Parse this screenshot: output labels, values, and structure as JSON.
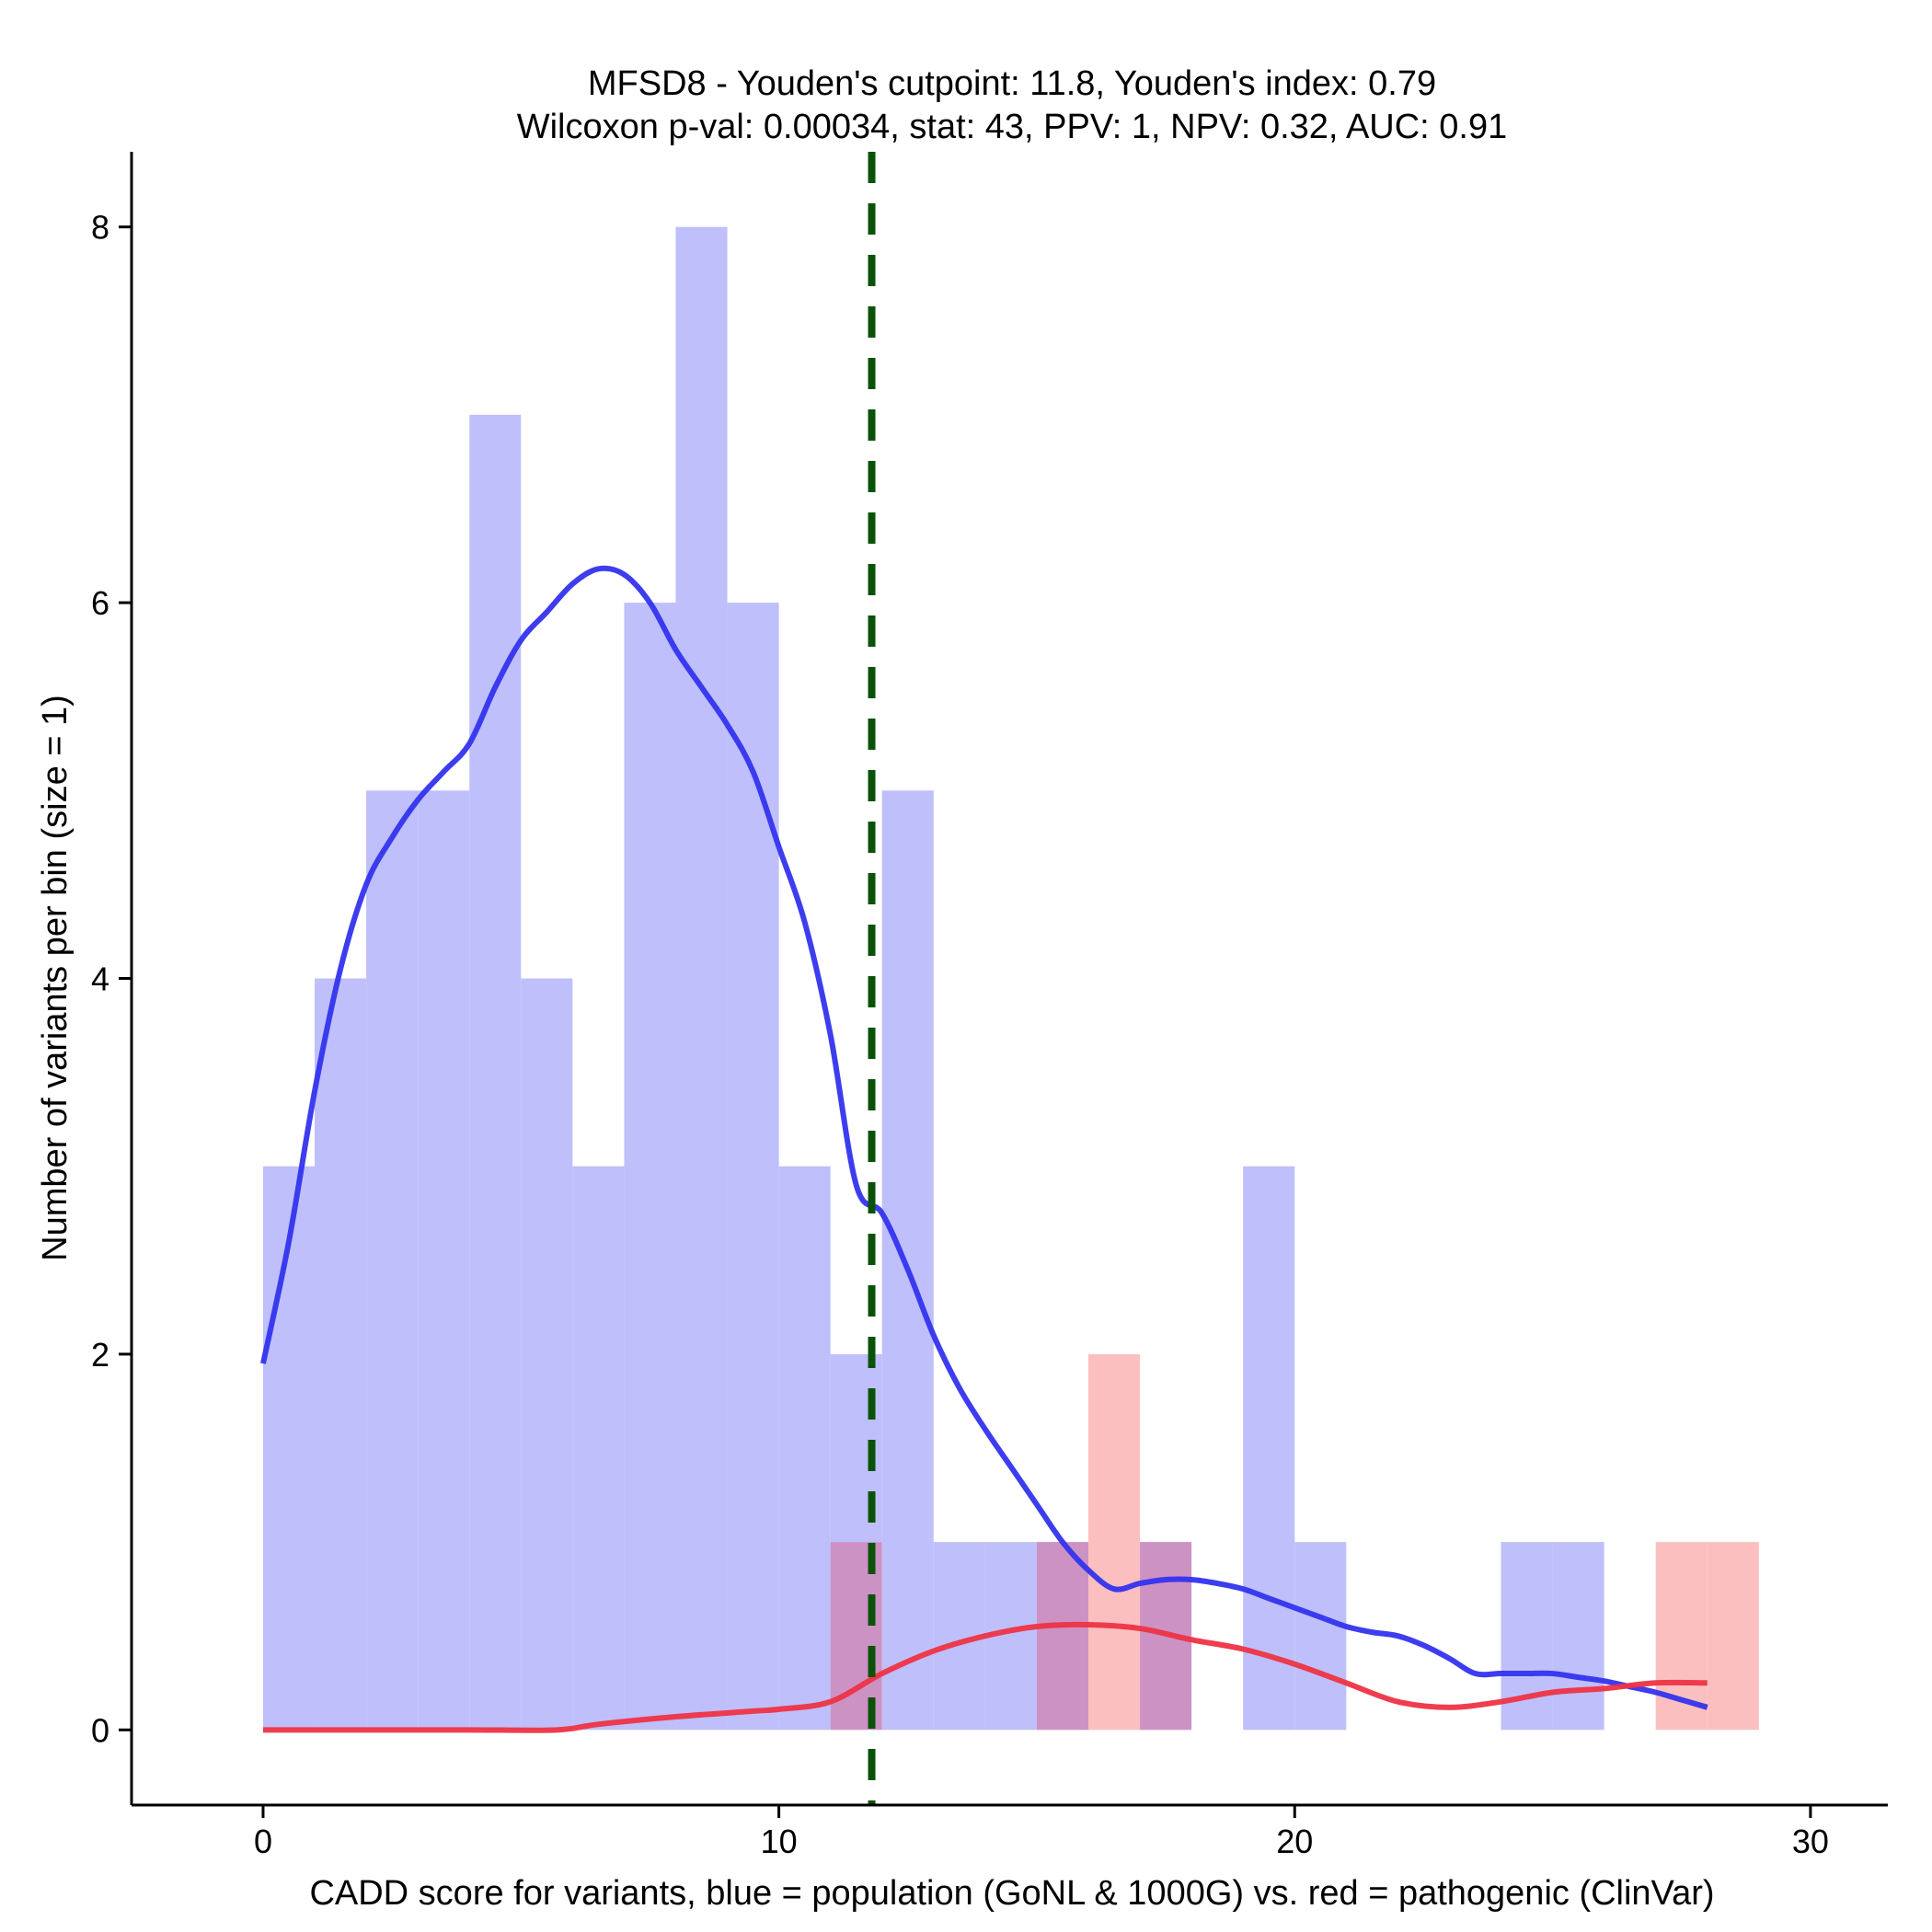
{
  "chart_data": {
    "type": "histogram",
    "title_line1": "MFSD8 - Youden's cutpoint: 11.8, Youden's index: 0.79",
    "title_line2": "Wilcoxon p-val: 0.00034, stat: 43, PPV: 1, NPV: 0.32, AUC: 0.91",
    "xlabel": "CADD score for variants, blue = population (GoNL & 1000G) vs. red = pathogenic (ClinVar)",
    "ylabel": "Number of variants per bin (size = 1)",
    "xlim": [
      -2.55,
      31.5
    ],
    "ylim": [
      -0.4,
      8.4
    ],
    "x_ticks": [
      0,
      10,
      20,
      30
    ],
    "x_tick_labels": [
      "0",
      "10",
      "20",
      "30"
    ],
    "y_ticks": [
      0,
      2,
      4,
      6,
      8
    ],
    "y_tick_labels": [
      "0",
      "2",
      "4",
      "6",
      "8"
    ],
    "bin_size": 1,
    "cutpoint": 11.8,
    "colors": {
      "population_fill": "#bfbffb",
      "pathogenic_fill": "#fcbfbf",
      "overlap_fill": "#cd92c4",
      "population_line": "#3333ee",
      "pathogenic_line": "#ee3344",
      "cutpoint_line": "#0b5209"
    },
    "series": [
      {
        "name": "population (GoNL & 1000G)",
        "bins": [
          {
            "x0": 0,
            "count": 3
          },
          {
            "x0": 1,
            "count": 4
          },
          {
            "x0": 2,
            "count": 5
          },
          {
            "x0": 3,
            "count": 5
          },
          {
            "x0": 4,
            "count": 7
          },
          {
            "x0": 5,
            "count": 4
          },
          {
            "x0": 6,
            "count": 3
          },
          {
            "x0": 7,
            "count": 6
          },
          {
            "x0": 8,
            "count": 8
          },
          {
            "x0": 9,
            "count": 6
          },
          {
            "x0": 10,
            "count": 3
          },
          {
            "x0": 11,
            "count": 2
          },
          {
            "x0": 12,
            "count": 5
          },
          {
            "x0": 13,
            "count": 1
          },
          {
            "x0": 14,
            "count": 1
          },
          {
            "x0": 15,
            "count": 1
          },
          {
            "x0": 17,
            "count": 1
          },
          {
            "x0": 19,
            "count": 3
          },
          {
            "x0": 20,
            "count": 1
          },
          {
            "x0": 24,
            "count": 1
          },
          {
            "x0": 25,
            "count": 1
          }
        ],
        "density_curve": [
          [
            0,
            1.95
          ],
          [
            0.5,
            2.6
          ],
          [
            1,
            3.4
          ],
          [
            1.5,
            4.05
          ],
          [
            2,
            4.5
          ],
          [
            2.5,
            4.75
          ],
          [
            3,
            4.95
          ],
          [
            3.5,
            5.1
          ],
          [
            4,
            5.25
          ],
          [
            4.5,
            5.55
          ],
          [
            5,
            5.8
          ],
          [
            5.5,
            5.95
          ],
          [
            6,
            6.1
          ],
          [
            6.5,
            6.18
          ],
          [
            7,
            6.15
          ],
          [
            7.5,
            6.0
          ],
          [
            8,
            5.75
          ],
          [
            8.5,
            5.55
          ],
          [
            9,
            5.35
          ],
          [
            9.5,
            5.1
          ],
          [
            10,
            4.7
          ],
          [
            10.5,
            4.3
          ],
          [
            11,
            3.7
          ],
          [
            11.5,
            2.9
          ],
          [
            12,
            2.75
          ],
          [
            12.5,
            2.45
          ],
          [
            13,
            2.1
          ],
          [
            13.5,
            1.82
          ],
          [
            14,
            1.6
          ],
          [
            14.5,
            1.4
          ],
          [
            15,
            1.2
          ],
          [
            15.5,
            1.0
          ],
          [
            16,
            0.85
          ],
          [
            16.5,
            0.75
          ],
          [
            17,
            0.78
          ],
          [
            17.5,
            0.8
          ],
          [
            18,
            0.8
          ],
          [
            18.5,
            0.78
          ],
          [
            19,
            0.75
          ],
          [
            19.5,
            0.7
          ],
          [
            20,
            0.65
          ],
          [
            20.5,
            0.6
          ],
          [
            21,
            0.55
          ],
          [
            21.5,
            0.52
          ],
          [
            22,
            0.5
          ],
          [
            22.5,
            0.45
          ],
          [
            23,
            0.38
          ],
          [
            23.5,
            0.3
          ],
          [
            24,
            0.3
          ],
          [
            24.5,
            0.3
          ],
          [
            25,
            0.3
          ],
          [
            25.5,
            0.28
          ],
          [
            26,
            0.26
          ],
          [
            26.5,
            0.23
          ],
          [
            27,
            0.2
          ],
          [
            27.5,
            0.16
          ],
          [
            28,
            0.12
          ]
        ]
      },
      {
        "name": "pathogenic (ClinVar)",
        "bins": [
          {
            "x0": 11,
            "count": 1
          },
          {
            "x0": 15,
            "count": 1
          },
          {
            "x0": 16,
            "count": 2
          },
          {
            "x0": 17,
            "count": 1
          },
          {
            "x0": 27,
            "count": 1
          },
          {
            "x0": 28,
            "count": 1
          }
        ],
        "density_curve": [
          [
            0,
            0.0
          ],
          [
            2,
            0.0
          ],
          [
            4,
            0.0
          ],
          [
            5.7,
            0.0
          ],
          [
            6.5,
            0.03
          ],
          [
            8,
            0.07
          ],
          [
            9.5,
            0.1
          ],
          [
            10,
            0.11
          ],
          [
            11,
            0.15
          ],
          [
            12,
            0.3
          ],
          [
            13,
            0.42
          ],
          [
            14,
            0.5
          ],
          [
            15,
            0.55
          ],
          [
            16,
            0.56
          ],
          [
            17,
            0.54
          ],
          [
            18,
            0.48
          ],
          [
            19,
            0.43
          ],
          [
            20,
            0.35
          ],
          [
            21,
            0.25
          ],
          [
            22,
            0.15
          ],
          [
            23,
            0.12
          ],
          [
            24,
            0.15
          ],
          [
            25,
            0.2
          ],
          [
            26,
            0.22
          ],
          [
            27,
            0.25
          ],
          [
            28,
            0.25
          ]
        ]
      }
    ]
  }
}
